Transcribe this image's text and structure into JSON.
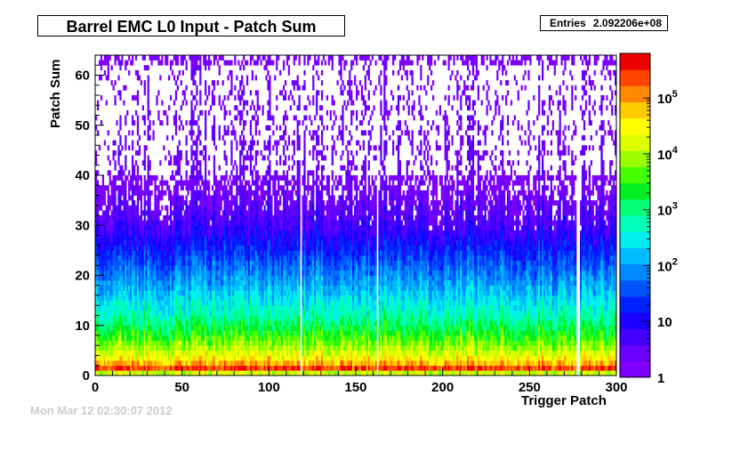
{
  "chart_data": {
    "type": "heatmap",
    "title": "Barrel EMC L0 Input - Patch Sum",
    "xlabel": "Trigger Patch",
    "ylabel": "Patch Sum",
    "xlim": [
      0,
      300
    ],
    "ylim": [
      0,
      64
    ],
    "x_ticks": [
      0,
      50,
      100,
      150,
      200,
      250,
      300
    ],
    "y_ticks": [
      0,
      10,
      20,
      30,
      40,
      50,
      60
    ],
    "z_scale": "log",
    "z_ticks": [
      "1",
      "10",
      "10^2",
      "10^3",
      "10^4",
      "10^5"
    ],
    "stats": {
      "label": "Entries",
      "value": "2.092206e+08"
    },
    "grid": false,
    "profile_by_patch_sum": [
      {
        "patch_sum": 0,
        "level": 0.45
      },
      {
        "patch_sum": 1,
        "level": 0.98
      },
      {
        "patch_sum": 2,
        "level": 0.88
      },
      {
        "patch_sum": 3,
        "level": 0.8
      },
      {
        "patch_sum": 5,
        "level": 0.7
      },
      {
        "patch_sum": 8,
        "level": 0.6
      },
      {
        "patch_sum": 12,
        "level": 0.48
      },
      {
        "patch_sum": 18,
        "level": 0.36
      },
      {
        "patch_sum": 25,
        "level": 0.22
      },
      {
        "patch_sum": 30,
        "level": 0.12
      },
      {
        "patch_sum": 38,
        "level": 0.03
      },
      {
        "patch_sum": 63,
        "level": 0.0
      }
    ],
    "empty_patches": [
      118,
      162,
      277,
      278
    ]
  },
  "footer": {
    "date": "Mon Mar 12 02:30:07 2012"
  },
  "palette": [
    "#7f00ff",
    "#6a00ff",
    "#4400ff",
    "#1a00ff",
    "#0022ff",
    "#0055ff",
    "#0088ff",
    "#00bbff",
    "#00eeee",
    "#00ffbb",
    "#00ff77",
    "#00ee22",
    "#44ff00",
    "#99ff00",
    "#ddff00",
    "#ffff00",
    "#ffcc00",
    "#ff8800",
    "#ff4400",
    "#ee0000"
  ]
}
